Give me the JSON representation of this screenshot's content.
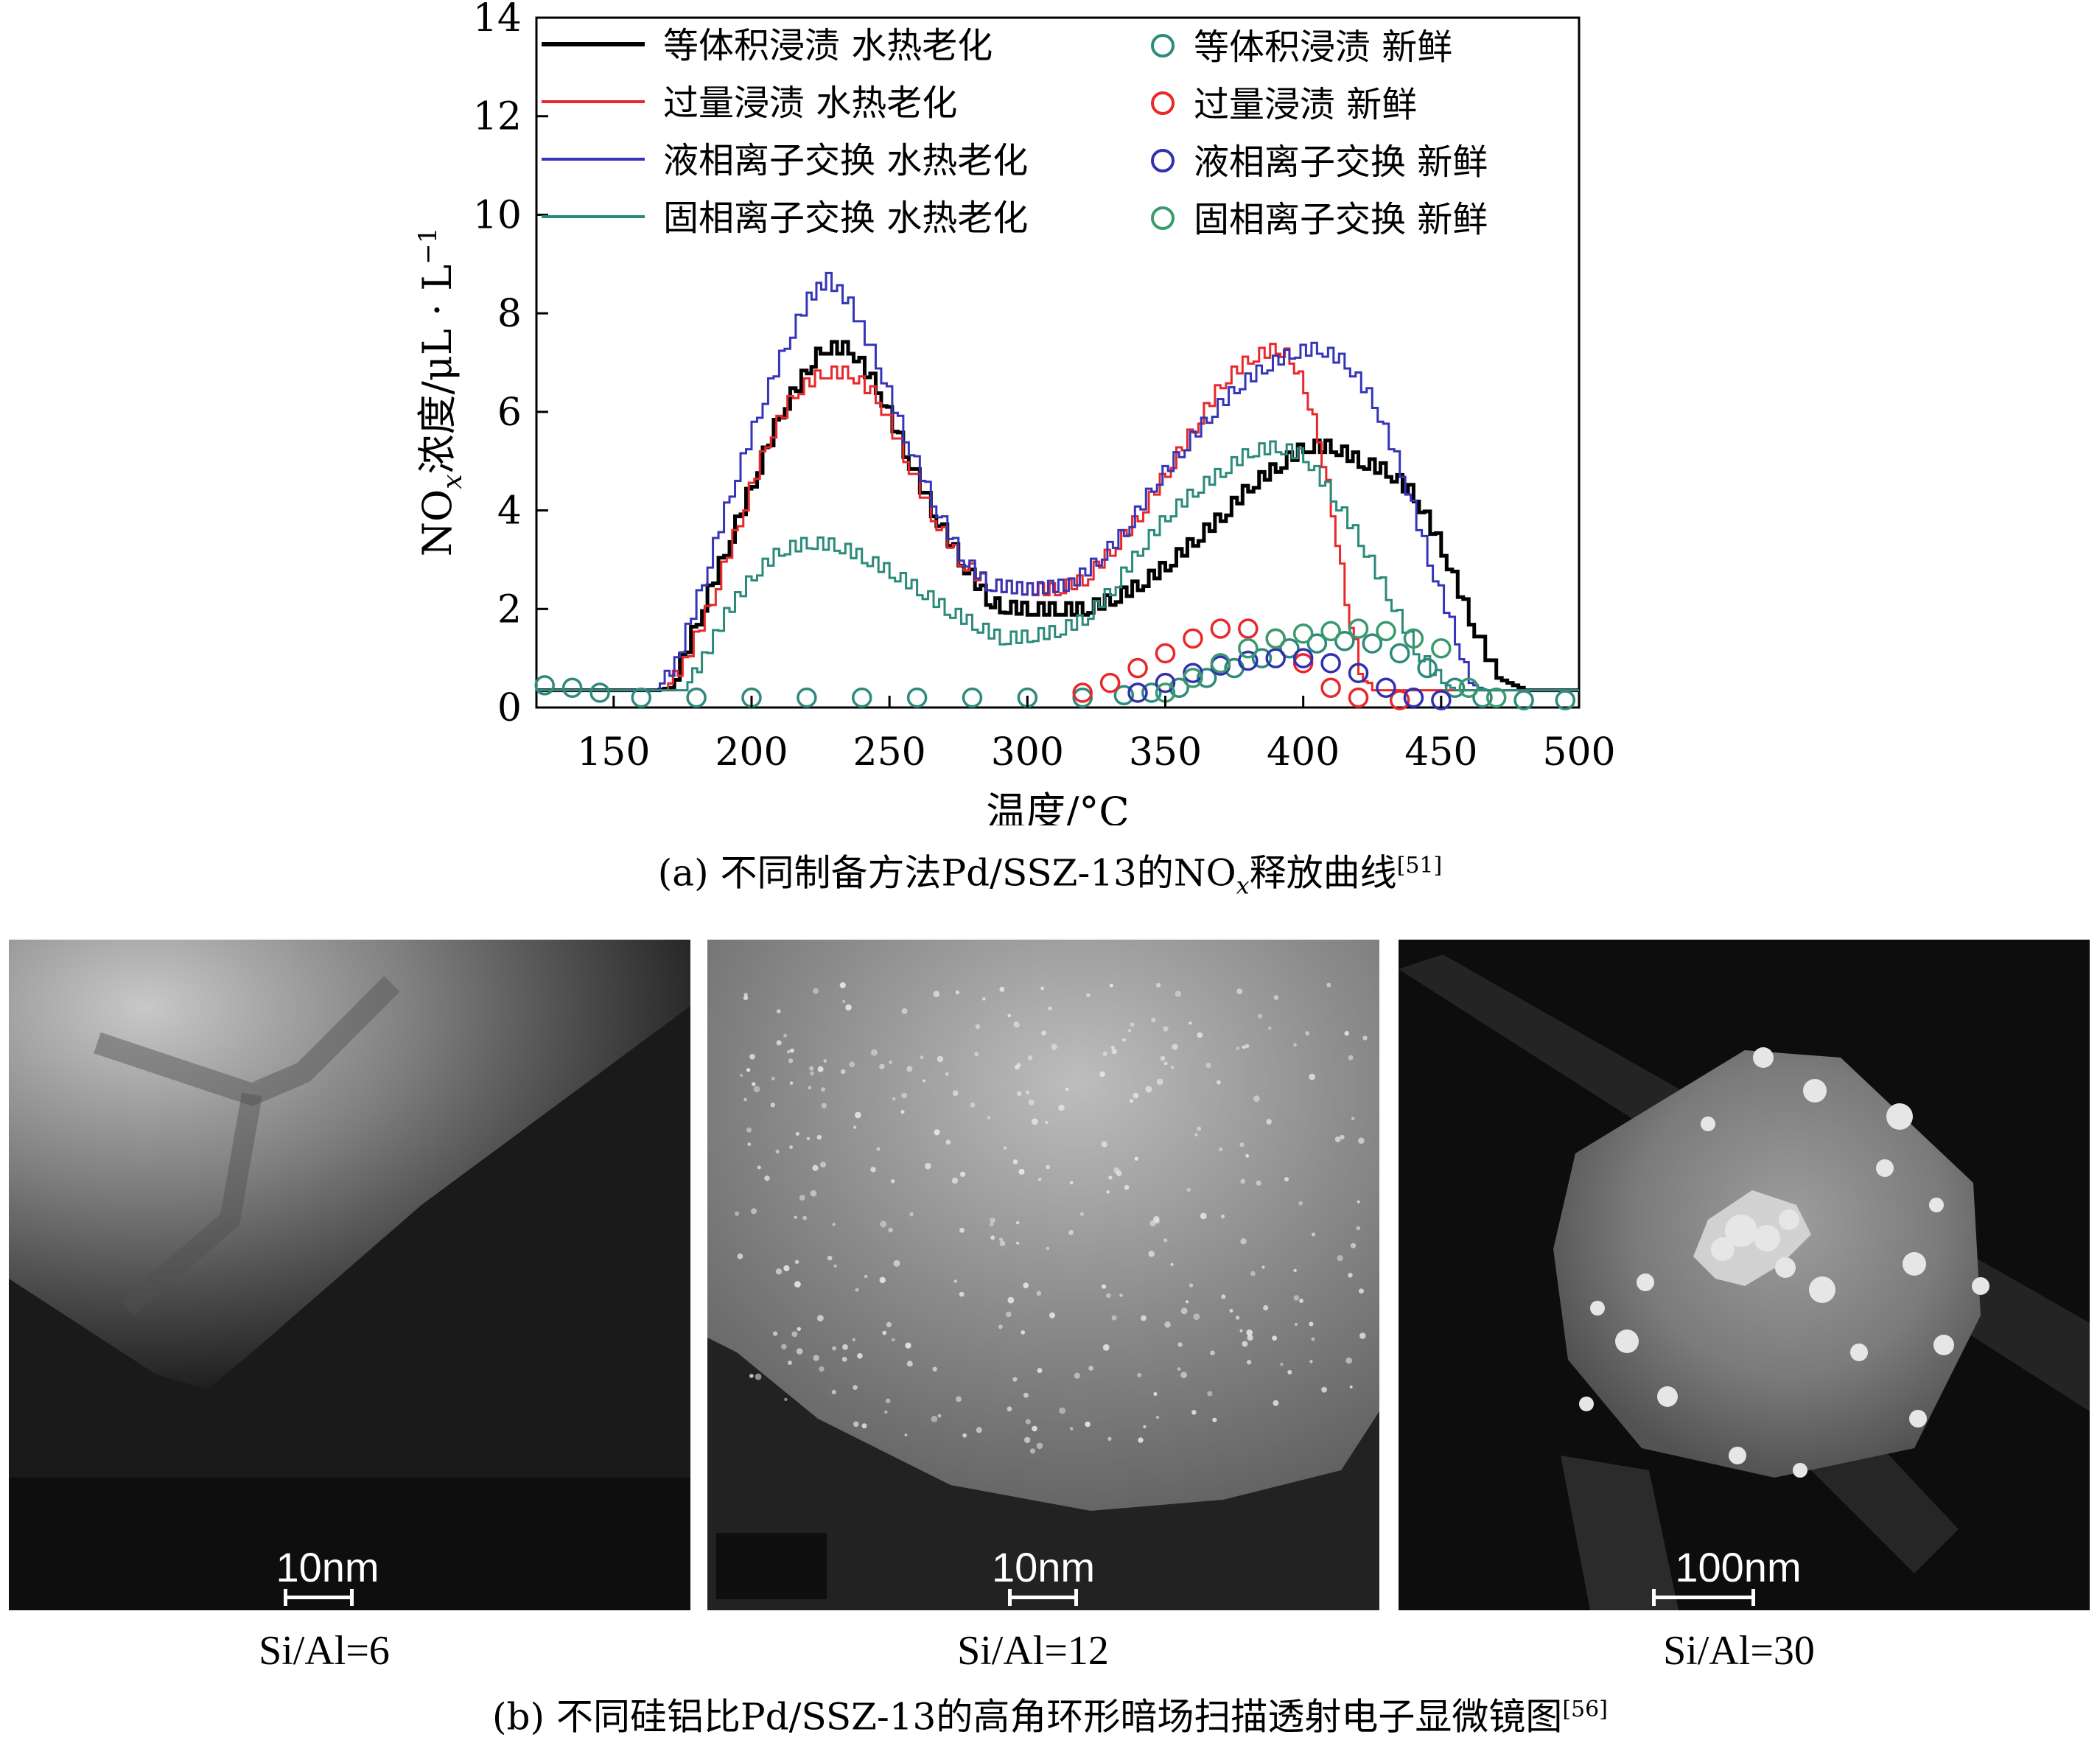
{
  "colors": {
    "black": "#000000",
    "red": "#e8282b",
    "blue": "#3535b8",
    "teal": "#2b8a7a",
    "fresh_teal": "#2e8a7c",
    "fresh_red": "#e8282b",
    "fresh_blue": "#3030b0",
    "fresh_green": "#3a9a6e"
  },
  "chart_data": {
    "type": "line",
    "xlabel": "温度/°C",
    "ylabel": "浓度/μL · L",
    "ylabel_prefix": "NO",
    "ylabel_sub": "x",
    "ylabel_sup": "−1",
    "xlim": [
      122,
      500
    ],
    "ylim": [
      0,
      14
    ],
    "x_ticks": [
      150,
      200,
      250,
      300,
      350,
      400,
      450,
      500
    ],
    "y_ticks": [
      0,
      2,
      4,
      6,
      8,
      10,
      12,
      14
    ],
    "grid": false,
    "legend_position": "top",
    "series": [
      {
        "name": "等体积浸渍  水热老化",
        "style": "line",
        "color_key": "black",
        "points": [
          [
            122,
            0.35
          ],
          [
            165,
            0.35
          ],
          [
            170,
            0.4
          ],
          [
            180,
            1.8
          ],
          [
            190,
            3.2
          ],
          [
            200,
            4.6
          ],
          [
            210,
            6.0
          ],
          [
            220,
            6.9
          ],
          [
            225,
            7.3
          ],
          [
            235,
            7.3
          ],
          [
            245,
            6.5
          ],
          [
            255,
            5.2
          ],
          [
            265,
            4.0
          ],
          [
            275,
            3.0
          ],
          [
            285,
            2.2
          ],
          [
            290,
            2.05
          ],
          [
            300,
            2.0
          ],
          [
            310,
            2.0
          ],
          [
            320,
            2.0
          ],
          [
            330,
            2.2
          ],
          [
            340,
            2.5
          ],
          [
            350,
            2.9
          ],
          [
            360,
            3.4
          ],
          [
            370,
            3.9
          ],
          [
            380,
            4.5
          ],
          [
            390,
            4.9
          ],
          [
            400,
            5.3
          ],
          [
            410,
            5.3
          ],
          [
            420,
            5.0
          ],
          [
            430,
            4.8
          ],
          [
            440,
            4.3
          ],
          [
            450,
            3.2
          ],
          [
            460,
            1.8
          ],
          [
            470,
            0.6
          ],
          [
            480,
            0.35
          ],
          [
            500,
            0.35
          ]
        ]
      },
      {
        "name": "过量浸渍  水热老化",
        "style": "line",
        "color_key": "red",
        "points": [
          [
            122,
            0.35
          ],
          [
            168,
            0.35
          ],
          [
            175,
            0.9
          ],
          [
            185,
            2.2
          ],
          [
            195,
            3.8
          ],
          [
            205,
            5.4
          ],
          [
            215,
            6.4
          ],
          [
            225,
            6.8
          ],
          [
            235,
            6.8
          ],
          [
            245,
            6.3
          ],
          [
            255,
            5.1
          ],
          [
            265,
            3.9
          ],
          [
            275,
            3.0
          ],
          [
            285,
            2.5
          ],
          [
            300,
            2.4
          ],
          [
            310,
            2.4
          ],
          [
            320,
            2.6
          ],
          [
            330,
            3.2
          ],
          [
            340,
            3.9
          ],
          [
            350,
            4.8
          ],
          [
            360,
            5.7
          ],
          [
            370,
            6.6
          ],
          [
            380,
            7.1
          ],
          [
            390,
            7.3
          ],
          [
            395,
            7.1
          ],
          [
            400,
            6.5
          ],
          [
            405,
            5.5
          ],
          [
            410,
            4.0
          ],
          [
            415,
            2.2
          ],
          [
            420,
            0.8
          ],
          [
            425,
            0.35
          ],
          [
            500,
            0.35
          ]
        ]
      },
      {
        "name": "液相离子交换  水热老化",
        "style": "line",
        "color_key": "blue",
        "points": [
          [
            122,
            0.35
          ],
          [
            165,
            0.35
          ],
          [
            172,
            0.9
          ],
          [
            182,
            2.6
          ],
          [
            192,
            4.4
          ],
          [
            202,
            6.0
          ],
          [
            212,
            7.4
          ],
          [
            220,
            8.3
          ],
          [
            227,
            8.7
          ],
          [
            235,
            8.2
          ],
          [
            245,
            7.0
          ],
          [
            255,
            5.5
          ],
          [
            265,
            4.2
          ],
          [
            275,
            3.1
          ],
          [
            285,
            2.5
          ],
          [
            300,
            2.4
          ],
          [
            315,
            2.5
          ],
          [
            325,
            3.0
          ],
          [
            335,
            3.6
          ],
          [
            345,
            4.5
          ],
          [
            355,
            5.2
          ],
          [
            365,
            5.9
          ],
          [
            375,
            6.5
          ],
          [
            385,
            6.9
          ],
          [
            395,
            7.2
          ],
          [
            405,
            7.3
          ],
          [
            415,
            7.0
          ],
          [
            425,
            6.2
          ],
          [
            435,
            4.8
          ],
          [
            445,
            3.0
          ],
          [
            455,
            1.4
          ],
          [
            460,
            0.5
          ],
          [
            465,
            0.35
          ],
          [
            500,
            0.35
          ]
        ]
      },
      {
        "name": "固相离子交换  水热老化",
        "style": "line",
        "color_key": "teal",
        "points": [
          [
            122,
            0.35
          ],
          [
            175,
            0.35
          ],
          [
            182,
            1.0
          ],
          [
            190,
            1.9
          ],
          [
            200,
            2.7
          ],
          [
            210,
            3.2
          ],
          [
            220,
            3.35
          ],
          [
            230,
            3.3
          ],
          [
            240,
            3.05
          ],
          [
            250,
            2.75
          ],
          [
            260,
            2.4
          ],
          [
            270,
            2.0
          ],
          [
            280,
            1.7
          ],
          [
            290,
            1.4
          ],
          [
            300,
            1.45
          ],
          [
            310,
            1.55
          ],
          [
            320,
            1.8
          ],
          [
            330,
            2.4
          ],
          [
            340,
            3.2
          ],
          [
            350,
            3.9
          ],
          [
            360,
            4.4
          ],
          [
            370,
            4.8
          ],
          [
            380,
            5.2
          ],
          [
            390,
            5.3
          ],
          [
            400,
            5.1
          ],
          [
            410,
            4.3
          ],
          [
            420,
            3.4
          ],
          [
            430,
            2.3
          ],
          [
            440,
            1.2
          ],
          [
            450,
            0.5
          ],
          [
            455,
            0.35
          ],
          [
            500,
            0.35
          ]
        ]
      },
      {
        "name": "等体积浸渍  新鲜",
        "style": "circles",
        "color_key": "fresh_teal",
        "points": [
          [
            125,
            0.45
          ],
          [
            135,
            0.4
          ],
          [
            145,
            0.3
          ],
          [
            160,
            0.2
          ],
          [
            180,
            0.2
          ],
          [
            200,
            0.2
          ],
          [
            220,
            0.2
          ],
          [
            240,
            0.2
          ],
          [
            260,
            0.2
          ],
          [
            280,
            0.2
          ],
          [
            300,
            0.2
          ],
          [
            320,
            0.2
          ],
          [
            335,
            0.25
          ],
          [
            345,
            0.3
          ],
          [
            355,
            0.4
          ],
          [
            365,
            0.6
          ],
          [
            375,
            0.8
          ],
          [
            385,
            1.0
          ],
          [
            395,
            1.2
          ],
          [
            405,
            1.3
          ],
          [
            415,
            1.35
          ],
          [
            425,
            1.3
          ],
          [
            435,
            1.1
          ],
          [
            445,
            0.8
          ],
          [
            455,
            0.4
          ],
          [
            465,
            0.2
          ],
          [
            480,
            0.15
          ],
          [
            495,
            0.15
          ]
        ]
      },
      {
        "name": "过量浸渍  新鲜",
        "style": "circles",
        "color_key": "fresh_red",
        "points": [
          [
            320,
            0.3
          ],
          [
            330,
            0.5
          ],
          [
            340,
            0.8
          ],
          [
            350,
            1.1
          ],
          [
            360,
            1.4
          ],
          [
            370,
            1.6
          ],
          [
            380,
            1.6
          ],
          [
            390,
            1.4
          ],
          [
            400,
            0.9
          ],
          [
            410,
            0.4
          ],
          [
            420,
            0.2
          ],
          [
            435,
            0.15
          ]
        ]
      },
      {
        "name": "液相离子交换  新鲜",
        "style": "circles",
        "color_key": "fresh_blue",
        "points": [
          [
            340,
            0.3
          ],
          [
            350,
            0.5
          ],
          [
            360,
            0.7
          ],
          [
            370,
            0.85
          ],
          [
            380,
            0.95
          ],
          [
            390,
            1.0
          ],
          [
            400,
            1.0
          ],
          [
            410,
            0.9
          ],
          [
            420,
            0.7
          ],
          [
            430,
            0.4
          ],
          [
            440,
            0.2
          ],
          [
            450,
            0.15
          ]
        ]
      },
      {
        "name": "固相离子交换  新鲜",
        "style": "circles",
        "color_key": "fresh_green",
        "points": [
          [
            350,
            0.3
          ],
          [
            360,
            0.6
          ],
          [
            370,
            0.9
          ],
          [
            380,
            1.2
          ],
          [
            390,
            1.4
          ],
          [
            400,
            1.5
          ],
          [
            410,
            1.55
          ],
          [
            420,
            1.6
          ],
          [
            430,
            1.55
          ],
          [
            440,
            1.4
          ],
          [
            450,
            1.2
          ],
          [
            460,
            0.4
          ],
          [
            470,
            0.2
          ]
        ]
      }
    ]
  },
  "captions": {
    "a_prefix": "(a) 不同制备方法Pd/SSZ-13的NO",
    "a_sub": "x",
    "a_suffix": "释放曲线",
    "a_ref": "[51]",
    "b_text": "(b) 不同硅铝比Pd/SSZ-13的高角环形暗场扫描透射电子显微镜图",
    "b_ref": "[56]"
  },
  "micrographs": [
    {
      "scale": "10nm",
      "label": "Si/Al=6"
    },
    {
      "scale": "10nm",
      "label": "Si/Al=12"
    },
    {
      "scale": "100nm",
      "label": "Si/Al=30"
    }
  ]
}
